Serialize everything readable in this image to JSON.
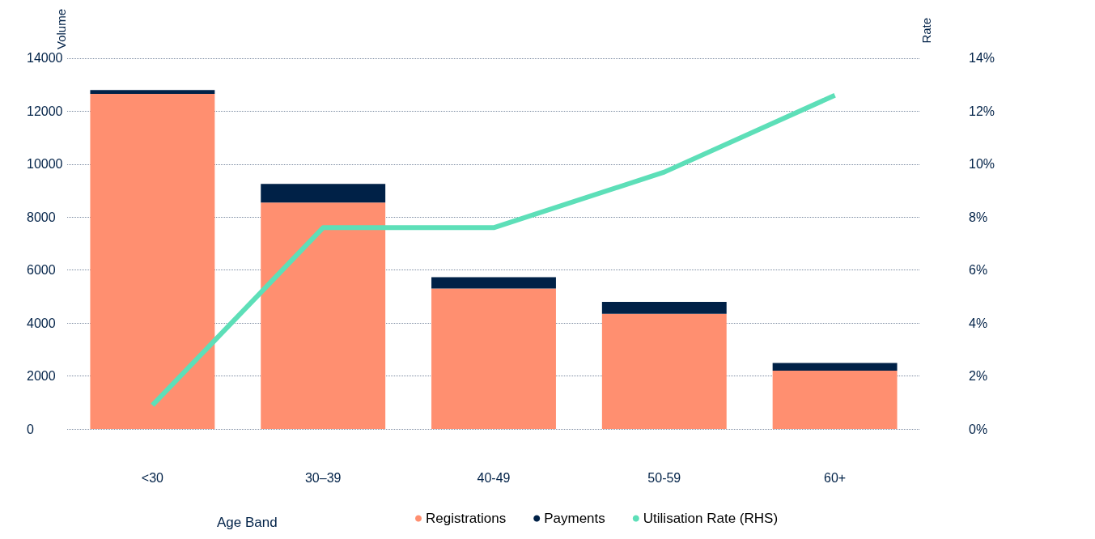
{
  "chart_data": {
    "type": "bar",
    "stacked": true,
    "categories": [
      "<30",
      "30–39",
      "40-49",
      "50-59",
      "60+"
    ],
    "xlabel": "Age Band",
    "ylabel": "Volume",
    "y2label": "Rate",
    "series": [
      {
        "name": "Registrations",
        "color": "#ff8f70",
        "values": [
          12650,
          8550,
          5300,
          4350,
          2200
        ]
      },
      {
        "name": "Payments",
        "color": "#002147",
        "values": [
          150,
          700,
          430,
          450,
          290
        ]
      },
      {
        "name": "Utilisation Rate (RHS)",
        "type": "line",
        "axis": "y2",
        "color": "#5ddfb8",
        "values": [
          0.9,
          7.6,
          7.6,
          9.7,
          12.6
        ]
      }
    ],
    "ylim": [
      0,
      14000
    ],
    "yticks": [
      0,
      2000,
      4000,
      6000,
      8000,
      10000,
      12000,
      14000
    ],
    "y2lim": [
      0,
      14
    ],
    "y2ticks": [
      {
        "value": 0,
        "label": "0%"
      },
      {
        "value": 2,
        "label": "2%"
      },
      {
        "value": 4,
        "label": "4%"
      },
      {
        "value": 6,
        "label": "6%"
      },
      {
        "value": 8,
        "label": "8%"
      },
      {
        "value": 10,
        "label": "10%"
      },
      {
        "value": 12,
        "label": "12%"
      },
      {
        "value": 14,
        "label": "14%"
      }
    ],
    "grid": "y",
    "legend": "bottom",
    "marker": "none"
  }
}
